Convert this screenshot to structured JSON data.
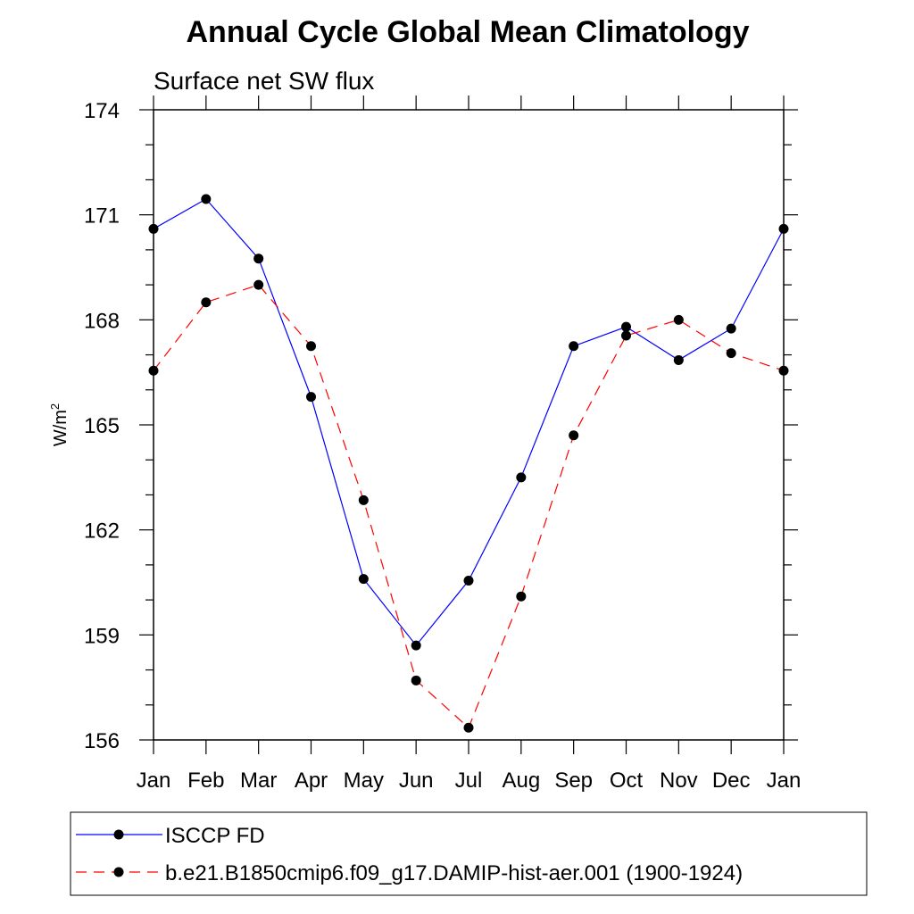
{
  "chart_data": {
    "type": "line",
    "title": "Annual Cycle Global Mean Climatology",
    "subtitle": "Surface net SW flux",
    "ylabel": "W/m",
    "ylabel_superscript": "2",
    "ylim": [
      156,
      174
    ],
    "yticks": [
      "156",
      "159",
      "162",
      "165",
      "168",
      "171",
      "174"
    ],
    "categories": [
      "Jan",
      "Feb",
      "Mar",
      "Apr",
      "May",
      "Jun",
      "Jul",
      "Aug",
      "Sep",
      "Oct",
      "Nov",
      "Dec",
      "Jan"
    ],
    "grid": false,
    "legend_position": "bottom",
    "series": [
      {
        "name": "ISCCP FD",
        "color": "#0000ff",
        "line_style": "solid",
        "marker": "filled-circle",
        "values": [
          170.6,
          171.45,
          169.75,
          165.8,
          160.6,
          158.7,
          160.55,
          163.5,
          167.25,
          167.8,
          166.85,
          167.75,
          170.6
        ]
      },
      {
        "name": "b.e21.B1850cmip6.f09_g17.DAMIP-hist-aer.001 (1900-1924)",
        "color": "#ff0000",
        "line_style": "dashed",
        "marker": "filled-circle",
        "values": [
          166.55,
          168.5,
          169.0,
          167.25,
          162.85,
          157.7,
          156.35,
          160.1,
          164.7,
          167.55,
          168.0,
          167.05,
          166.55
        ]
      }
    ]
  }
}
